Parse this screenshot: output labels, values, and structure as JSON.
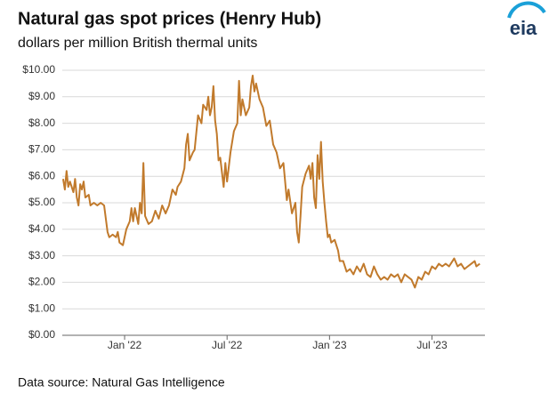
{
  "chart_data": {
    "type": "line",
    "title": "Natural gas spot prices (Henry Hub)",
    "subtitle": "dollars per million British thermal units",
    "source": "Data source: Natural Gas Intelligence",
    "logo": "eia",
    "x": [
      -3.6,
      -3.5,
      -3.4,
      -3.3,
      -3.2,
      -3.0,
      -2.9,
      -2.8,
      -2.7,
      -2.6,
      -2.5,
      -2.4,
      -2.3,
      -2.1,
      -2.0,
      -1.8,
      -1.6,
      -1.4,
      -1.2,
      -1.0,
      -0.9,
      -0.7,
      -0.5,
      -0.4,
      -0.3,
      -0.1,
      0.1,
      0.3,
      0.4,
      0.5,
      0.6,
      0.8,
      0.9,
      1.0,
      1.1,
      1.2,
      1.4,
      1.6,
      1.8,
      2.0,
      2.2,
      2.4,
      2.6,
      2.8,
      3.0,
      3.1,
      3.3,
      3.5,
      3.6,
      3.7,
      3.8,
      4.0,
      4.1,
      4.3,
      4.5,
      4.6,
      4.8,
      4.9,
      5.0,
      5.1,
      5.2,
      5.3,
      5.4,
      5.5,
      5.6,
      5.8,
      5.9,
      6.0,
      6.2,
      6.4,
      6.6,
      6.7,
      6.8,
      6.9,
      7.1,
      7.3,
      7.4,
      7.5,
      7.6,
      7.7,
      7.9,
      8.1,
      8.3,
      8.5,
      8.7,
      8.9,
      9.1,
      9.3,
      9.5,
      9.6,
      9.8,
      10.0,
      10.1,
      10.2,
      10.3,
      10.4,
      10.6,
      10.8,
      10.9,
      11.0,
      11.1,
      11.2,
      11.3,
      11.4,
      11.5,
      11.6,
      11.7,
      11.8,
      11.9,
      12.0,
      12.1,
      12.3,
      12.5,
      12.6,
      12.8,
      13.0,
      13.2,
      13.4,
      13.6,
      13.8,
      14.0,
      14.2,
      14.4,
      14.6,
      14.8,
      15.0,
      15.2,
      15.4,
      15.6,
      15.8,
      16.0,
      16.2,
      16.4,
      16.6,
      16.8,
      17.0,
      17.2,
      17.4,
      17.6,
      17.8,
      18.0,
      18.2,
      18.4,
      18.6,
      18.8,
      19.0,
      19.2,
      19.3,
      19.5,
      19.7,
      19.9,
      20.1,
      20.3,
      20.5,
      20.6,
      20.8
    ],
    "series": [
      {
        "color": "#c17a2c",
        "values": [
          5.9,
          5.5,
          6.2,
          5.6,
          5.8,
          5.4,
          5.9,
          5.2,
          4.9,
          5.7,
          5.5,
          5.8,
          5.2,
          5.3,
          4.9,
          5.0,
          4.9,
          5.0,
          4.9,
          3.9,
          3.7,
          3.8,
          3.7,
          3.9,
          3.5,
          3.4,
          4.0,
          4.3,
          4.8,
          4.3,
          4.8,
          4.2,
          5.0,
          4.6,
          6.5,
          4.5,
          4.2,
          4.3,
          4.7,
          4.4,
          4.9,
          4.6,
          4.9,
          5.5,
          5.3,
          5.6,
          5.8,
          6.3,
          7.2,
          7.6,
          6.6,
          6.9,
          7.0,
          8.3,
          8.0,
          8.7,
          8.5,
          9.0,
          8.3,
          8.6,
          9.4,
          8.1,
          7.6,
          6.6,
          6.7,
          5.6,
          6.5,
          5.8,
          6.9,
          7.7,
          8.0,
          9.6,
          8.3,
          8.9,
          8.3,
          8.6,
          9.4,
          9.8,
          9.2,
          9.5,
          8.9,
          8.6,
          7.9,
          8.1,
          7.2,
          6.9,
          6.3,
          6.5,
          5.1,
          5.5,
          4.6,
          5.0,
          3.9,
          3.5,
          4.5,
          5.6,
          6.1,
          6.4,
          5.9,
          6.5,
          5.2,
          4.8,
          6.8,
          5.9,
          7.3,
          5.8,
          5.0,
          4.3,
          3.7,
          3.8,
          3.5,
          3.6,
          3.2,
          2.8,
          2.8,
          2.4,
          2.5,
          2.3,
          2.6,
          2.4,
          2.7,
          2.3,
          2.2,
          2.6,
          2.3,
          2.1,
          2.2,
          2.1,
          2.3,
          2.2,
          2.3,
          2.0,
          2.3,
          2.2,
          2.1,
          1.8,
          2.2,
          2.1,
          2.4,
          2.3,
          2.6,
          2.5,
          2.7,
          2.6,
          2.7,
          2.6,
          2.8,
          2.9,
          2.6,
          2.7,
          2.5,
          2.6,
          2.7,
          2.8,
          2.6,
          2.7
        ]
      }
    ],
    "xlim": [
      -3.65,
      21.1
    ],
    "xticks": [
      {
        "value": 0,
        "label": "Jan '22"
      },
      {
        "value": 6,
        "label": "Jul '22"
      },
      {
        "value": 12,
        "label": "Jan '23"
      },
      {
        "value": 18,
        "label": "Jul '23"
      }
    ],
    "ylim": [
      0,
      10
    ],
    "yticks": [
      {
        "value": 0,
        "label": "$0.00"
      },
      {
        "value": 1,
        "label": "$1.00"
      },
      {
        "value": 2,
        "label": "$2.00"
      },
      {
        "value": 3,
        "label": "$3.00"
      },
      {
        "value": 4,
        "label": "$4.00"
      },
      {
        "value": 5,
        "label": "$5.00"
      },
      {
        "value": 6,
        "label": "$6.00"
      },
      {
        "value": 7,
        "label": "$7.00"
      },
      {
        "value": 8,
        "label": "$8.00"
      },
      {
        "value": 9,
        "label": "$9.00"
      },
      {
        "value": 10,
        "label": "$10.00"
      }
    ],
    "grid": true
  }
}
